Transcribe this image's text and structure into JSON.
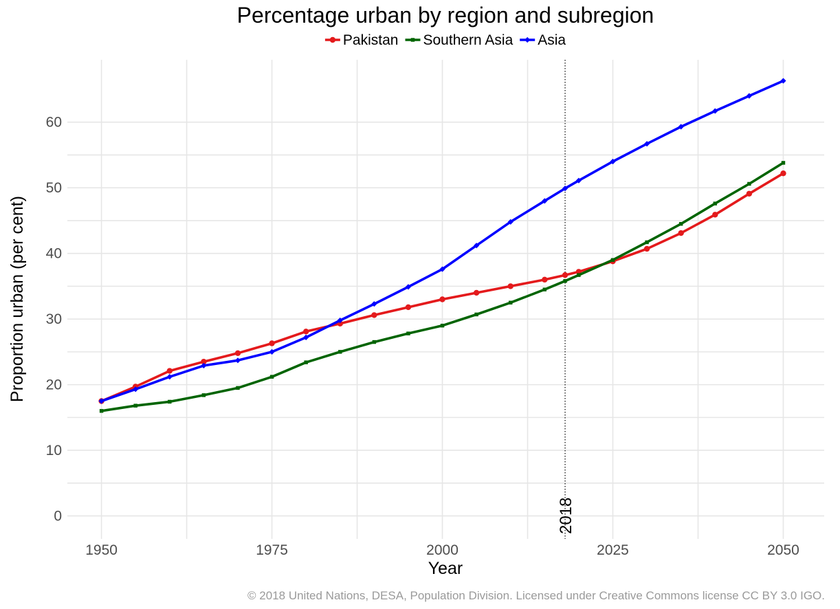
{
  "chart_data": {
    "type": "line",
    "title": "Percentage urban by region and subregion",
    "xlabel": "Year",
    "ylabel": "Proportion urban (per cent)",
    "xlim": [
      1945,
      2056
    ],
    "ylim": [
      -3.5,
      69.5
    ],
    "x_ticks": [
      1950,
      1975,
      2000,
      2025,
      2050
    ],
    "y_ticks": [
      0,
      10,
      20,
      30,
      40,
      50,
      60
    ],
    "grid": true,
    "legend_position": "top",
    "x": [
      1950,
      1955,
      1960,
      1965,
      1970,
      1975,
      1980,
      1985,
      1990,
      1995,
      2000,
      2005,
      2010,
      2015,
      2018,
      2020,
      2025,
      2030,
      2035,
      2040,
      2045,
      2050
    ],
    "series": [
      {
        "name": "Pakistan",
        "color": "#e41a1c",
        "marker": "circle",
        "values": [
          17.5,
          19.7,
          22.1,
          23.5,
          24.8,
          26.3,
          28.1,
          29.3,
          30.6,
          31.8,
          33.0,
          34.0,
          35.0,
          36.0,
          36.7,
          37.2,
          38.8,
          40.7,
          43.1,
          45.9,
          49.1,
          52.2
        ]
      },
      {
        "name": "Southern Asia",
        "color": "#006400",
        "marker": "square",
        "values": [
          16.0,
          16.8,
          17.4,
          18.4,
          19.5,
          21.2,
          23.4,
          25.0,
          26.5,
          27.8,
          29.0,
          30.7,
          32.5,
          34.5,
          35.8,
          36.7,
          39.0,
          41.7,
          44.5,
          47.6,
          50.6,
          53.8
        ]
      },
      {
        "name": "Asia",
        "color": "#0000ff",
        "marker": "diamond",
        "values": [
          17.5,
          19.3,
          21.2,
          22.9,
          23.7,
          25.0,
          27.2,
          29.8,
          32.3,
          34.9,
          37.6,
          41.2,
          44.8,
          48.0,
          49.9,
          51.1,
          54.0,
          56.7,
          59.3,
          61.7,
          64.0,
          66.3
        ]
      }
    ],
    "vline": {
      "x": 2018,
      "label": "2018",
      "style": "dotted"
    },
    "caption": "© 2018 United Nations, DESA, Population Division. Licensed under Creative Commons license CC BY 3.0 IGO."
  }
}
